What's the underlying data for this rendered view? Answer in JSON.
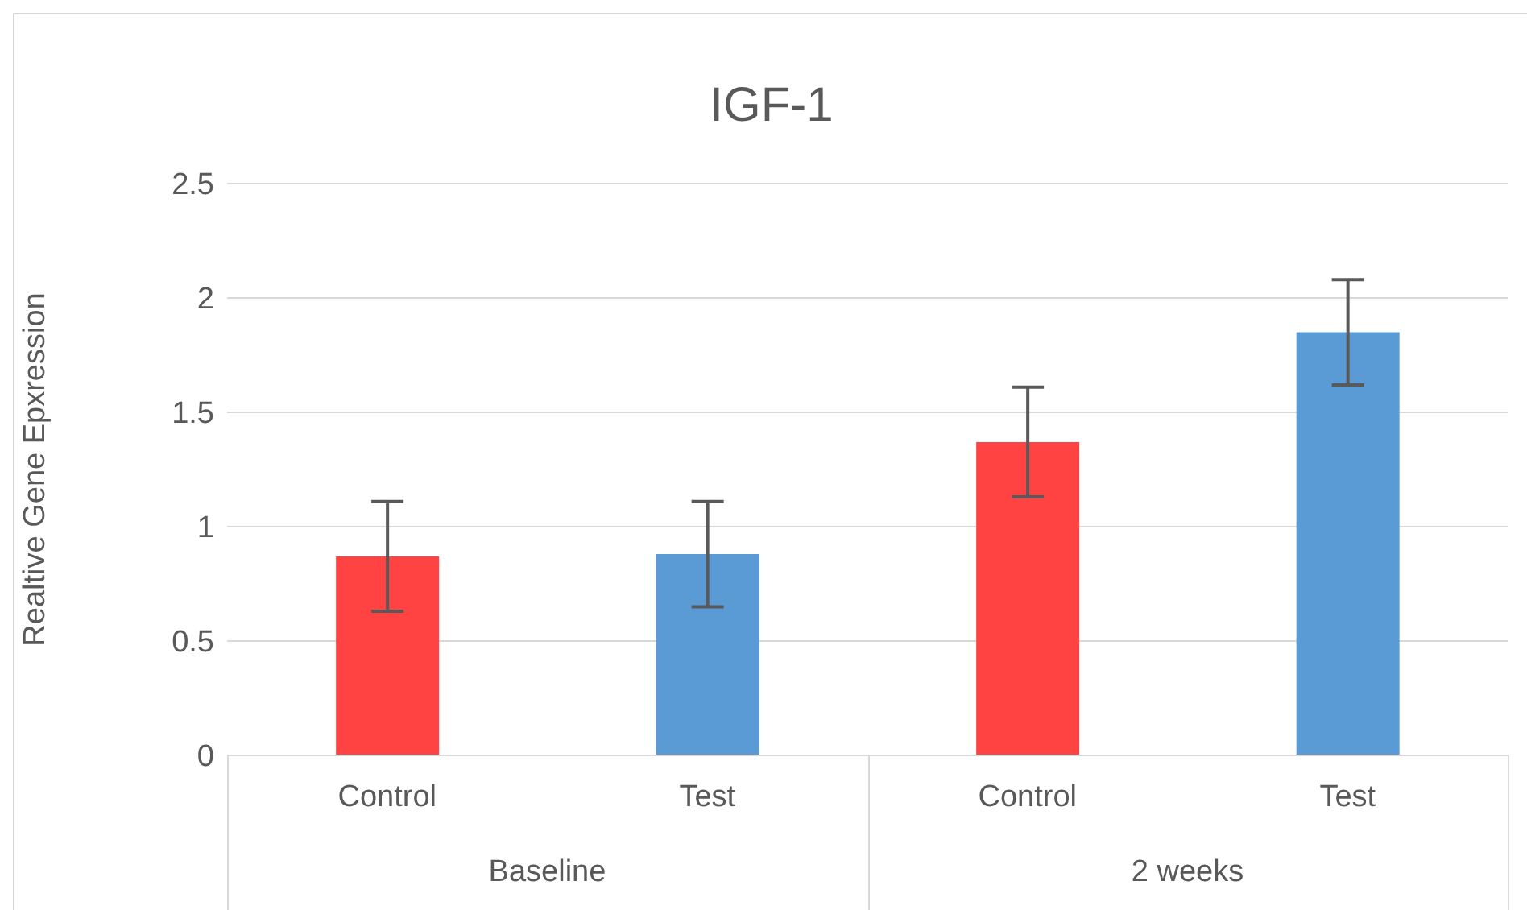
{
  "chart_data": {
    "type": "bar",
    "title": "IGF-1",
    "ylabel": "Realtive Gene Epxression",
    "categories": [
      "Control",
      "Test",
      "Control",
      "Test"
    ],
    "values": [
      0.87,
      0.88,
      1.37,
      1.85
    ],
    "errors": [
      0.24,
      0.23,
      0.24,
      0.23
    ],
    "colors": [
      "#ff4343",
      "#5b9bd5",
      "#ff4343",
      "#5b9bd5"
    ],
    "ylim": [
      0,
      2.5
    ],
    "yticks": [
      0,
      0.5,
      1,
      1.5,
      2,
      2.5
    ],
    "grid": "y",
    "annotations": [
      "Baseline",
      "2 weeks"
    ]
  }
}
